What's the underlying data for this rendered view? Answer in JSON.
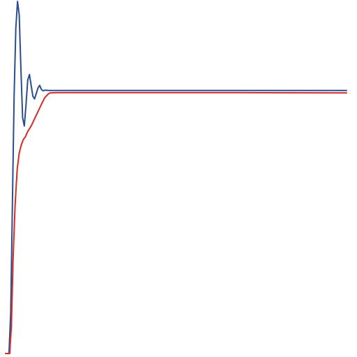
{
  "chart_data": {
    "type": "line",
    "title": "",
    "xlabel": "",
    "ylabel": "",
    "grid": false,
    "legend": "none",
    "xlim": [
      0,
      100
    ],
    "ylim": [
      0,
      1.3
    ],
    "series": [
      {
        "color": "#2b4d8f",
        "x": [
          0,
          1,
          1.5,
          2,
          2.5,
          3,
          3.5,
          4,
          4.5,
          5,
          5.5,
          6,
          6.5,
          7,
          7.5,
          8,
          8.5,
          9,
          9.5,
          10,
          10.5,
          11,
          11.5,
          12,
          12.5,
          13,
          14,
          15,
          20,
          30,
          50,
          70,
          100
        ],
        "y": [
          0.0,
          0.0,
          0.15,
          0.55,
          0.95,
          1.2,
          1.3,
          1.25,
          1.05,
          0.87,
          0.84,
          0.92,
          1.01,
          1.03,
          0.99,
          0.95,
          0.94,
          0.96,
          0.98,
          0.99,
          0.975,
          0.97,
          0.972,
          0.972,
          0.971,
          0.971,
          0.971,
          0.971,
          0.971,
          0.971,
          0.971,
          0.971,
          0.971
        ]
      },
      {
        "color": "#d42a2a",
        "x": [
          0,
          1.2,
          1.7,
          2.2,
          2.8,
          3.4,
          4,
          4.6,
          5.2,
          5.8,
          6.5,
          7.5,
          9,
          10.5,
          11.5,
          12.5,
          13,
          15,
          20,
          30,
          50,
          70,
          100
        ],
        "y": [
          0.0,
          0.0,
          0.1,
          0.35,
          0.55,
          0.68,
          0.74,
          0.77,
          0.79,
          0.8,
          0.82,
          0.84,
          0.88,
          0.92,
          0.945,
          0.958,
          0.962,
          0.963,
          0.963,
          0.963,
          0.963,
          0.963,
          0.962
        ]
      }
    ]
  }
}
